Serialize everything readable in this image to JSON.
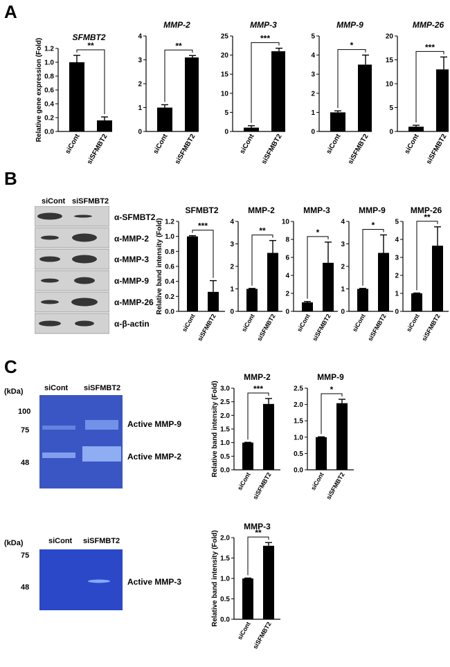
{
  "panels": {
    "a": "A",
    "b": "B",
    "c": "C"
  },
  "western": {
    "lanes": [
      "siCont",
      "siSFMBT2"
    ],
    "antibodies": [
      "α-SFMBT2",
      "α-MMP-2",
      "α-MMP-3",
      "α-MMP-9",
      "α-MMP-26",
      "α-β-actin"
    ]
  },
  "zymo1": {
    "unit": "(kDa)",
    "lanes": [
      "siCont",
      "siSFMBT2"
    ],
    "markers": [
      "100",
      "75",
      "48"
    ],
    "bands": [
      "Active MMP-9",
      "Active MMP-2"
    ]
  },
  "zymo2": {
    "unit": "(kDa)",
    "lanes": [
      "siCont",
      "siSFMBT2"
    ],
    "markers": [
      "75",
      "48"
    ],
    "bands": [
      "Active MMP-3"
    ]
  },
  "colors": {
    "bar": "#000000",
    "blot_bg": "#d2d2d2",
    "gel_bg": "#3a56c4"
  },
  "chart_data": [
    {
      "id": "A1",
      "type": "bar",
      "title": "SFMBT2",
      "italic_title": true,
      "ylabel": "Relative gene expression (Fold)",
      "categories": [
        "siCont",
        "siSFMBT2"
      ],
      "values": [
        1.0,
        0.16
      ],
      "errors": [
        0.1,
        0.05
      ],
      "ylim": [
        0,
        1.2
      ],
      "yticks": [
        "0.0",
        "0.2",
        "0.4",
        "0.6",
        "0.8",
        "1.0",
        "1.2"
      ],
      "significance": "**"
    },
    {
      "id": "A2",
      "type": "bar",
      "title": "MMP-2",
      "italic_title": true,
      "ylabel": "",
      "categories": [
        "siCont",
        "siSFMBT2"
      ],
      "values": [
        1.0,
        3.1
      ],
      "errors": [
        0.12,
        0.08
      ],
      "ylim": [
        0,
        4
      ],
      "yticks": [
        "0",
        "1",
        "2",
        "3",
        "4"
      ],
      "significance": "**"
    },
    {
      "id": "A3",
      "type": "bar",
      "title": "MMP-3",
      "italic_title": true,
      "ylabel": "",
      "categories": [
        "siCont",
        "siSFMBT2"
      ],
      "values": [
        1.0,
        21.0
      ],
      "errors": [
        0.5,
        0.8
      ],
      "ylim": [
        0,
        25
      ],
      "yticks": [
        "0",
        "5",
        "10",
        "15",
        "20",
        "25"
      ],
      "significance": "***"
    },
    {
      "id": "A4",
      "type": "bar",
      "title": "MMP-9",
      "italic_title": true,
      "ylabel": "",
      "categories": [
        "siCont",
        "siSFMBT2"
      ],
      "values": [
        1.0,
        3.5
      ],
      "errors": [
        0.08,
        0.5
      ],
      "ylim": [
        0,
        5
      ],
      "yticks": [
        "0",
        "1",
        "2",
        "3",
        "4",
        "5"
      ],
      "significance": "*"
    },
    {
      "id": "A5",
      "type": "bar",
      "title": "MMP-26",
      "italic_title": true,
      "ylabel": "",
      "categories": [
        "siCont",
        "siSFMBT2"
      ],
      "values": [
        1.0,
        13.0
      ],
      "errors": [
        0.3,
        2.6
      ],
      "ylim": [
        0,
        20
      ],
      "yticks": [
        "0",
        "5",
        "10",
        "15",
        "20"
      ],
      "significance": "***"
    },
    {
      "id": "B1",
      "type": "bar",
      "title": "SFMBT2",
      "italic_title": false,
      "ylabel": "Relative band intensity (Fold)",
      "categories": [
        "siCont",
        "siSFMBT2"
      ],
      "values": [
        1.0,
        0.26
      ],
      "errors": [
        0.01,
        0.15
      ],
      "ylim": [
        0,
        1.2
      ],
      "yticks": [
        "0.0",
        "0.2",
        "0.4",
        "0.6",
        "0.8",
        "1.0",
        "1.2"
      ],
      "significance": "***"
    },
    {
      "id": "B2",
      "type": "bar",
      "title": "MMP-2",
      "italic_title": false,
      "ylabel": "",
      "categories": [
        "siCont",
        "siSFMBT2"
      ],
      "values": [
        1.0,
        2.6
      ],
      "errors": [
        0.02,
        0.55
      ],
      "ylim": [
        0,
        4
      ],
      "yticks": [
        "0",
        "1",
        "2",
        "3",
        "4"
      ],
      "significance": "**"
    },
    {
      "id": "B3",
      "type": "bar",
      "title": "MMP-3",
      "italic_title": false,
      "ylabel": "",
      "categories": [
        "siCont",
        "siSFMBT2"
      ],
      "values": [
        1.0,
        5.4
      ],
      "errors": [
        0.1,
        2.3
      ],
      "ylim": [
        0,
        10
      ],
      "yticks": [
        "0",
        "2",
        "4",
        "6",
        "8",
        "10"
      ],
      "significance": "*"
    },
    {
      "id": "B4",
      "type": "bar",
      "title": "MMP-9",
      "italic_title": false,
      "ylabel": "",
      "categories": [
        "siCont",
        "siSFMBT2"
      ],
      "values": [
        1.0,
        2.6
      ],
      "errors": [
        0.02,
        0.8
      ],
      "ylim": [
        0,
        4
      ],
      "yticks": [
        "0",
        "1",
        "2",
        "3",
        "4"
      ],
      "significance": "*"
    },
    {
      "id": "B5",
      "type": "bar",
      "title": "MMP-26",
      "italic_title": false,
      "ylabel": "",
      "categories": [
        "siCont",
        "siSFMBT2"
      ],
      "values": [
        1.0,
        3.65
      ],
      "errors": [
        0.02,
        1.05
      ],
      "ylim": [
        0,
        5
      ],
      "yticks": [
        "0",
        "1",
        "2",
        "3",
        "4",
        "5"
      ],
      "significance": "**"
    },
    {
      "id": "C1",
      "type": "bar",
      "title": "MMP-2",
      "italic_title": false,
      "ylabel": "Relative band intensity (Fold)",
      "categories": [
        "siCont",
        "siSFMBT2"
      ],
      "values": [
        1.0,
        2.42
      ],
      "errors": [
        0.01,
        0.2
      ],
      "ylim": [
        0,
        3
      ],
      "yticks": [
        "0.0",
        "0.5",
        "1.0",
        "1.5",
        "2.0",
        "2.5",
        "3.0"
      ],
      "significance": "***"
    },
    {
      "id": "C2",
      "type": "bar",
      "title": "MMP-9",
      "italic_title": false,
      "ylabel": "",
      "categories": [
        "siCont",
        "siSFMBT2"
      ],
      "values": [
        1.0,
        2.04
      ],
      "errors": [
        0.01,
        0.12
      ],
      "ylim": [
        0,
        2.5
      ],
      "yticks": [
        "0.0",
        "0.5",
        "1.0",
        "1.5",
        "2.0",
        "2.5"
      ],
      "significance": "*"
    },
    {
      "id": "C3",
      "type": "bar",
      "title": "MMP-3",
      "italic_title": false,
      "ylabel": "Relative band intensity (Fold)",
      "categories": [
        "siCont",
        "siSFMBT2"
      ],
      "values": [
        1.0,
        1.8
      ],
      "errors": [
        0.01,
        0.08
      ],
      "ylim": [
        0,
        2
      ],
      "yticks": [
        "0.0",
        "0.5",
        "1.0",
        "1.5",
        "2.0"
      ],
      "significance": "**"
    }
  ]
}
